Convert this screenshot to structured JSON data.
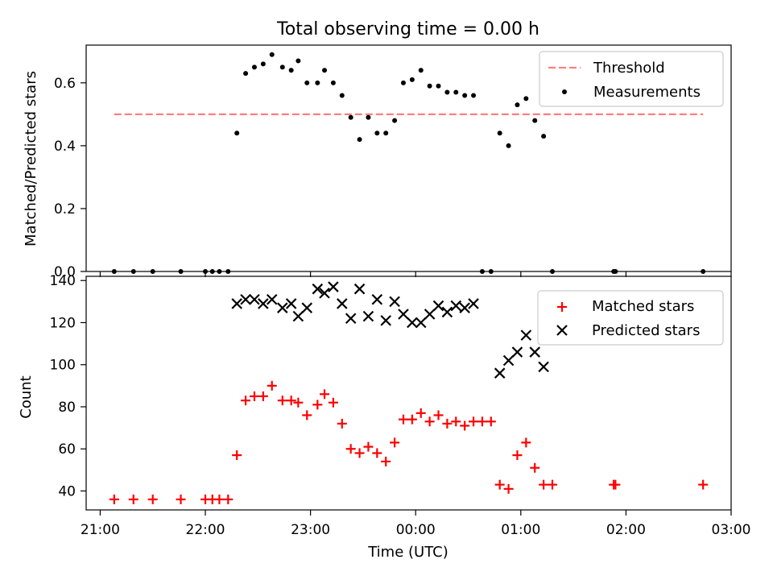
{
  "chart_data": [
    {
      "type": "scatter",
      "title": "Total observing time = 0.00 h",
      "xlabel": "",
      "ylabel": "Matched/Predicted stars",
      "ylim": [
        0,
        0.72
      ],
      "yticks": [
        "0.0",
        "0.2",
        "0.4",
        "0.6"
      ],
      "yticks_values": [
        0,
        0.2,
        0.4,
        0.6
      ],
      "grid": false,
      "legend_position": "top-right",
      "threshold": {
        "name": "Threshold",
        "color": "#ff7f7f",
        "y": 0.5,
        "x_start": "21:08",
        "x_end": "02:44"
      },
      "series": [
        {
          "name": "Measurements",
          "color": "#000000",
          "marker": "dot",
          "points": [
            [
              "21:08",
              0.0
            ],
            [
              "21:19",
              0.0
            ],
            [
              "21:30",
              0.0
            ],
            [
              "21:46",
              0.0
            ],
            [
              "22:00",
              0.0
            ],
            [
              "22:04",
              0.0
            ],
            [
              "22:08",
              0.0
            ],
            [
              "22:13",
              0.0
            ],
            [
              "22:18",
              0.44
            ],
            [
              "22:23",
              0.63
            ],
            [
              "22:28",
              0.65
            ],
            [
              "22:33",
              0.66
            ],
            [
              "22:38",
              0.69
            ],
            [
              "22:44",
              0.65
            ],
            [
              "22:49",
              0.64
            ],
            [
              "22:53",
              0.67
            ],
            [
              "22:58",
              0.6
            ],
            [
              "23:04",
              0.6
            ],
            [
              "23:08",
              0.64
            ],
            [
              "23:13",
              0.6
            ],
            [
              "23:18",
              0.56
            ],
            [
              "23:23",
              0.49
            ],
            [
              "23:28",
              0.42
            ],
            [
              "23:33",
              0.49
            ],
            [
              "23:38",
              0.44
            ],
            [
              "23:43",
              0.44
            ],
            [
              "23:48",
              0.48
            ],
            [
              "23:53",
              0.6
            ],
            [
              "23:58",
              0.61
            ],
            [
              "00:03",
              0.64
            ],
            [
              "00:08",
              0.59
            ],
            [
              "00:13",
              0.59
            ],
            [
              "00:18",
              0.57
            ],
            [
              "00:23",
              0.57
            ],
            [
              "00:28",
              0.56
            ],
            [
              "00:33",
              0.56
            ],
            [
              "00:38",
              0.0
            ],
            [
              "00:43",
              0.0
            ],
            [
              "00:48",
              0.44
            ],
            [
              "00:53",
              0.4
            ],
            [
              "00:58",
              0.53
            ],
            [
              "01:03",
              0.55
            ],
            [
              "01:08",
              0.48
            ],
            [
              "01:13",
              0.43
            ],
            [
              "01:18",
              0.0
            ],
            [
              "01:53",
              0.0
            ],
            [
              "01:54",
              0.0
            ],
            [
              "02:44",
              0.0
            ]
          ]
        }
      ]
    },
    {
      "type": "scatter",
      "title": "",
      "xlabel": "Time (UTC)",
      "ylabel": "Count",
      "ylim": [
        31,
        142
      ],
      "yticks": [
        "40",
        "60",
        "80",
        "100",
        "120",
        "140"
      ],
      "yticks_values": [
        40,
        60,
        80,
        100,
        120,
        140
      ],
      "xticks": [
        "21:00",
        "22:00",
        "23:00",
        "00:00",
        "01:00",
        "02:00",
        "03:00"
      ],
      "grid": false,
      "legend_position": "top-right",
      "series": [
        {
          "name": "Matched stars",
          "color": "#ff0000",
          "marker": "plus",
          "points": [
            [
              "21:08",
              36
            ],
            [
              "21:19",
              36
            ],
            [
              "21:30",
              36
            ],
            [
              "21:46",
              36
            ],
            [
              "22:00",
              36
            ],
            [
              "22:04",
              36
            ],
            [
              "22:08",
              36
            ],
            [
              "22:13",
              36
            ],
            [
              "22:18",
              57
            ],
            [
              "22:23",
              83
            ],
            [
              "22:28",
              85
            ],
            [
              "22:33",
              85
            ],
            [
              "22:38",
              90
            ],
            [
              "22:44",
              83
            ],
            [
              "22:49",
              83
            ],
            [
              "22:53",
              82
            ],
            [
              "22:58",
              76
            ],
            [
              "23:04",
              81
            ],
            [
              "23:08",
              86
            ],
            [
              "23:13",
              82
            ],
            [
              "23:18",
              72
            ],
            [
              "23:23",
              60
            ],
            [
              "23:28",
              58
            ],
            [
              "23:33",
              61
            ],
            [
              "23:38",
              58
            ],
            [
              "23:43",
              54
            ],
            [
              "23:48",
              63
            ],
            [
              "23:53",
              74
            ],
            [
              "23:58",
              74
            ],
            [
              "00:03",
              77
            ],
            [
              "00:08",
              73
            ],
            [
              "00:13",
              76
            ],
            [
              "00:18",
              72
            ],
            [
              "00:23",
              73
            ],
            [
              "00:28",
              71
            ],
            [
              "00:33",
              73
            ],
            [
              "00:38",
              73
            ],
            [
              "00:43",
              73
            ],
            [
              "00:48",
              43
            ],
            [
              "00:53",
              41
            ],
            [
              "00:58",
              57
            ],
            [
              "01:03",
              63
            ],
            [
              "01:08",
              51
            ],
            [
              "01:13",
              43
            ],
            [
              "01:18",
              43
            ],
            [
              "01:53",
              43
            ],
            [
              "01:54",
              43
            ],
            [
              "02:44",
              43
            ]
          ]
        },
        {
          "name": "Predicted stars",
          "color": "#000000",
          "marker": "x",
          "points": [
            [
              "22:18",
              129
            ],
            [
              "22:23",
              131
            ],
            [
              "22:28",
              131
            ],
            [
              "22:33",
              129
            ],
            [
              "22:38",
              131
            ],
            [
              "22:44",
              127
            ],
            [
              "22:49",
              129
            ],
            [
              "22:53",
              123
            ],
            [
              "22:58",
              127
            ],
            [
              "23:04",
              136
            ],
            [
              "23:08",
              134
            ],
            [
              "23:13",
              137
            ],
            [
              "23:18",
              129
            ],
            [
              "23:23",
              122
            ],
            [
              "23:28",
              136
            ],
            [
              "23:33",
              123
            ],
            [
              "23:38",
              131
            ],
            [
              "23:43",
              121
            ],
            [
              "23:48",
              130
            ],
            [
              "23:53",
              124
            ],
            [
              "23:58",
              120
            ],
            [
              "00:03",
              120
            ],
            [
              "00:08",
              124
            ],
            [
              "00:13",
              128
            ],
            [
              "00:18",
              125
            ],
            [
              "00:23",
              128
            ],
            [
              "00:28",
              127
            ],
            [
              "00:33",
              129
            ],
            [
              "00:48",
              96
            ],
            [
              "00:53",
              102
            ],
            [
              "00:58",
              106
            ],
            [
              "01:03",
              114
            ],
            [
              "01:08",
              106
            ],
            [
              "01:13",
              99
            ]
          ]
        }
      ]
    }
  ],
  "x_axis": {
    "start_time": "20:52",
    "end_time": "03:00",
    "tick_label_positions": [
      "21:00",
      "22:00",
      "23:00",
      "00:00",
      "01:00",
      "02:00",
      "03:00"
    ]
  }
}
